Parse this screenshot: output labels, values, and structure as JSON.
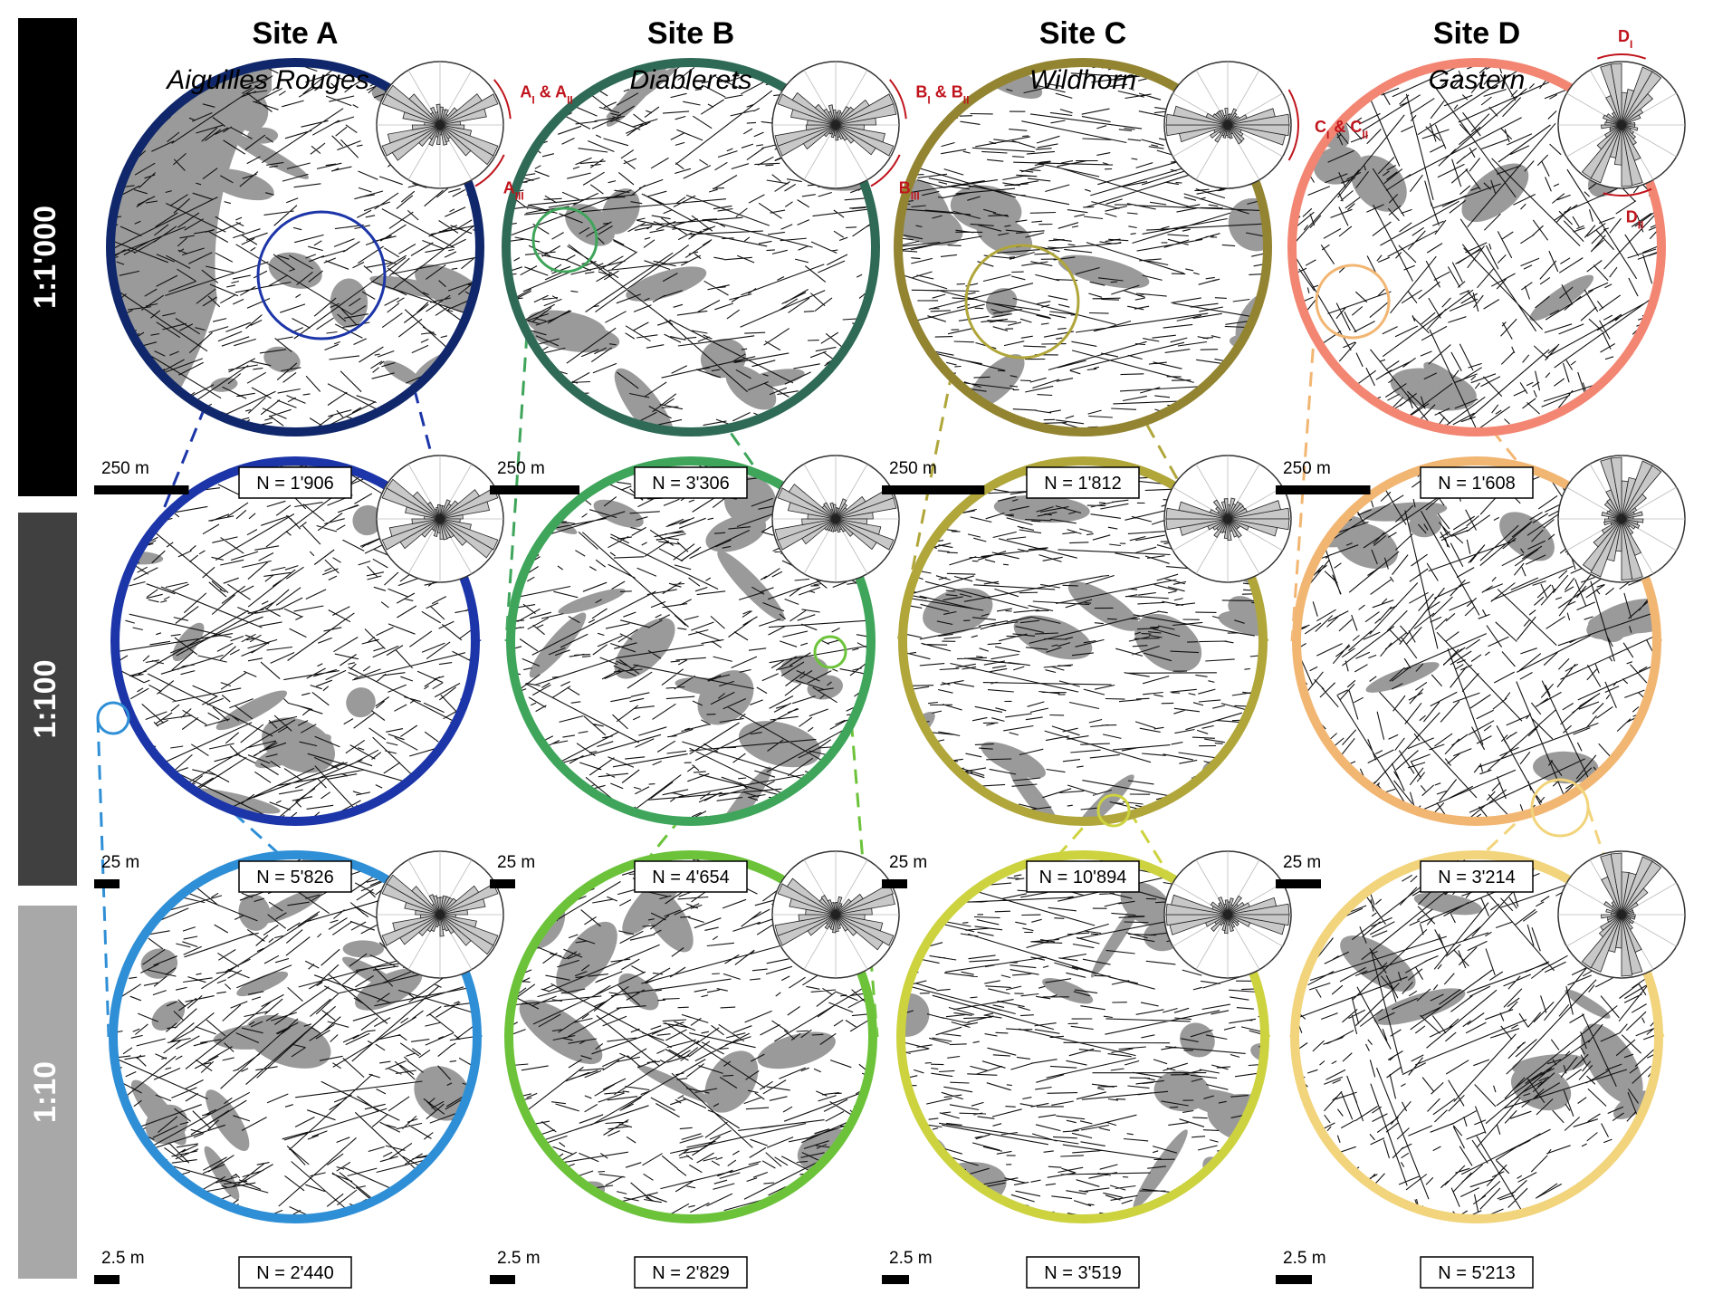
{
  "columns": [
    {
      "site": "Site A",
      "place": "Aiguilles Rouges",
      "colors": [
        "#10286b",
        "#1c35a8",
        "#2f8fd6"
      ],
      "counts": [
        "N = 1'906",
        "N = 5'826",
        "N = 2'440"
      ],
      "sets": [
        {
          "main": "A",
          "subs": [
            "I"
          ],
          "joiner": " & ",
          "sub2": "II"
        },
        {
          "main": "A",
          "subs": [
            "III"
          ]
        }
      ]
    },
    {
      "site": "Site B",
      "place": "Diablerets",
      "colors": [
        "#2f6a57",
        "#3ea55a",
        "#6cc33a"
      ],
      "counts": [
        "N = 3'306",
        "N = 4'654",
        "N = 2'829"
      ],
      "sets": [
        {
          "main": "B",
          "subs": [
            "I"
          ],
          "joiner": " & ",
          "sub2": "II"
        },
        {
          "main": "B",
          "subs": [
            "III"
          ]
        }
      ]
    },
    {
      "site": "Site C",
      "place": "Wildhorn",
      "colors": [
        "#938431",
        "#b0a63a",
        "#cdd33f"
      ],
      "counts": [
        "N = 1'812",
        "N = 10'894",
        "N = 3'519"
      ],
      "sets": [
        {
          "main": "C",
          "subs": [
            "I"
          ],
          "joiner": " & ",
          "sub2": "II"
        }
      ]
    },
    {
      "site": "Site D",
      "place": "Gastern",
      "colors": [
        "#f28673",
        "#f2b673",
        "#f2d47c"
      ],
      "counts": [
        "N = 1'608",
        "N = 3'214",
        "N = 5'213"
      ],
      "sets": [
        {
          "main": "D",
          "subs": [
            "I"
          ]
        },
        {
          "main": "D",
          "subs": [
            "II"
          ]
        }
      ]
    }
  ],
  "scales": [
    "1:1'000",
    "1:100",
    "1:10"
  ],
  "scale_bar_labels": [
    "250 m",
    "25 m",
    "2.5 m"
  ],
  "colors": {
    "outcrop_gray": "#9a9a9a",
    "fracture": "#111111",
    "set_annotation": "#c0141c",
    "row_band_1": "#000000",
    "row_band_2": "#404040",
    "row_band_3": "#a8a8a8"
  }
}
